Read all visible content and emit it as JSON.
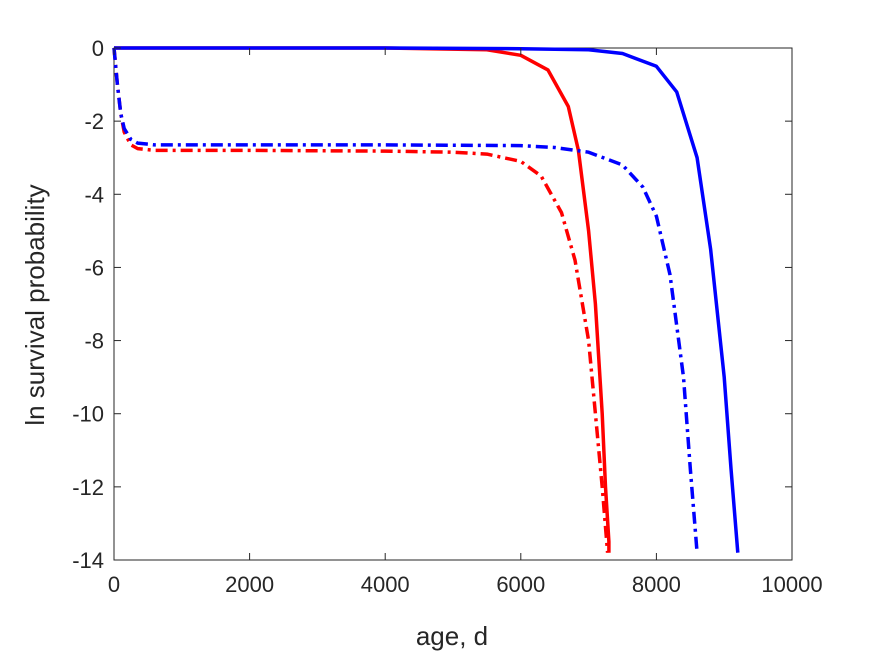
{
  "chart_data": {
    "type": "line",
    "title": "",
    "xlabel": "age, d",
    "ylabel": "ln survival probability",
    "xlim": [
      0,
      10000
    ],
    "ylim": [
      -14,
      0
    ],
    "xticks": [
      0,
      2000,
      4000,
      6000,
      8000,
      10000
    ],
    "yticks": [
      0,
      -2,
      -4,
      -6,
      -8,
      -10,
      -12,
      -14
    ],
    "grid": false,
    "legend": "none",
    "series": [
      {
        "color": "#ff0000",
        "style": "solid",
        "x": [
          0,
          2000,
          4000,
          5500,
          6000,
          6400,
          6700,
          6850,
          7000,
          7100,
          7200,
          7250,
          7300,
          7300
        ],
        "y": [
          0,
          0,
          0,
          -0.05,
          -0.2,
          -0.6,
          -1.6,
          -2.8,
          -5.0,
          -7.0,
          -10.0,
          -12.0,
          -13.5,
          -13.8
        ]
      },
      {
        "color": "#0000ff",
        "style": "solid",
        "x": [
          0,
          2000,
          4000,
          6000,
          7000,
          7500,
          8000,
          8300,
          8600,
          8800,
          9000,
          9100,
          9200
        ],
        "y": [
          0,
          0,
          0,
          -0.02,
          -0.05,
          -0.15,
          -0.5,
          -1.2,
          -3.0,
          -5.5,
          -9.0,
          -11.5,
          -13.8
        ]
      },
      {
        "color": "#ff0000",
        "style": "dashdot",
        "x": [
          0,
          50,
          100,
          150,
          250,
          350,
          600,
          2000,
          4000,
          5000,
          5500,
          6000,
          6300,
          6600,
          6800,
          7000,
          7100,
          7200,
          7280
        ],
        "y": [
          0,
          -1.0,
          -1.8,
          -2.3,
          -2.65,
          -2.75,
          -2.8,
          -2.8,
          -2.82,
          -2.85,
          -2.9,
          -3.1,
          -3.5,
          -4.5,
          -5.8,
          -8.0,
          -10.0,
          -12.0,
          -13.8
        ]
      },
      {
        "color": "#0000ff",
        "style": "dashdot",
        "x": [
          0,
          50,
          100,
          150,
          250,
          350,
          600,
          2000,
          4000,
          6000,
          6500,
          7000,
          7500,
          7800,
          8000,
          8200,
          8400,
          8500,
          8600
        ],
        "y": [
          0,
          -1.0,
          -1.8,
          -2.2,
          -2.5,
          -2.6,
          -2.65,
          -2.65,
          -2.65,
          -2.67,
          -2.72,
          -2.85,
          -3.2,
          -3.8,
          -4.6,
          -6.2,
          -9.0,
          -11.5,
          -13.8
        ]
      }
    ]
  }
}
